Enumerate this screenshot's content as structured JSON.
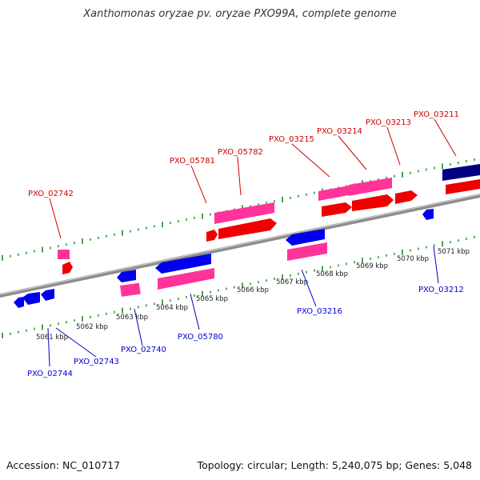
{
  "header": {
    "title": "Xanthomonas oryzae pv. oryzae PXO99A, complete genome"
  },
  "footer": {
    "accession": "Accession: NC_010717",
    "summary": "Topology: circular; Length: 5,240,075 bp; Genes: 5,048"
  },
  "colors": {
    "forward_gene": "#ff0000",
    "forward_cds": "#ff3399",
    "reverse_gene": "#0000ff",
    "reverse_cds": "#ff3399",
    "highlight_gene": "#000080",
    "label_forward": "#cc0000",
    "label_reverse": "#0000cc",
    "tick": "#228B22",
    "backbone": "#888888"
  },
  "scale": {
    "unit": "kbp",
    "labels": [
      "5061 kbp",
      "5062 kbp",
      "5063 kbp",
      "5064 kbp",
      "5065 kbp",
      "5066 kbp",
      "5067 kbp",
      "5068 kbp",
      "5069 kbp",
      "5070 kbp",
      "5071 kbp"
    ]
  },
  "genes": {
    "forward": [
      "PXO_02742",
      "PXO_05781",
      "PXO_05782",
      "PXO_03215",
      "PXO_03214",
      "PXO_03213",
      "PXO_03211"
    ],
    "reverse": [
      "PXO_02744",
      "PXO_02743",
      "PXO_02740",
      "PXO_05780",
      "PXO_03216",
      "PXO_03212"
    ]
  }
}
